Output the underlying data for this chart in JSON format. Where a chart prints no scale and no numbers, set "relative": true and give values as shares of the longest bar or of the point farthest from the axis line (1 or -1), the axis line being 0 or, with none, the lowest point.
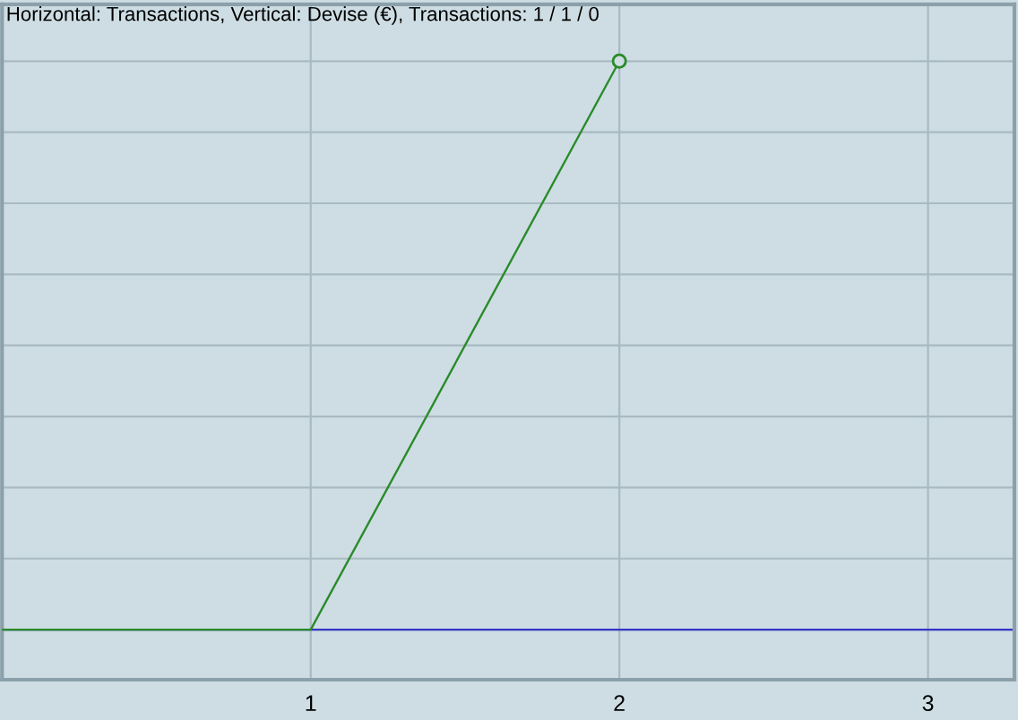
{
  "chart_data": {
    "type": "line",
    "title": "Horizontal: Transactions, Vertical: Devise (€), Transactions: 1 / 1 / 0",
    "relative": true,
    "x": [
      0,
      1,
      2
    ],
    "series": [
      {
        "color": "#2a8a2a",
        "values": [
          0,
          0,
          1
        ]
      },
      {
        "type": "scatter",
        "x": [
          2
        ],
        "color": "#2a8a2a",
        "marker": "circle",
        "values": [
          1
        ]
      }
    ],
    "xlim": [
      0,
      3.28
    ],
    "xticks": [
      1,
      2,
      3
    ],
    "tick_labels": "x",
    "grid": true,
    "line_style": "solid",
    "ref_lines": [
      {
        "axis": "y",
        "value": 0,
        "color": "#3535c8"
      }
    ]
  }
}
